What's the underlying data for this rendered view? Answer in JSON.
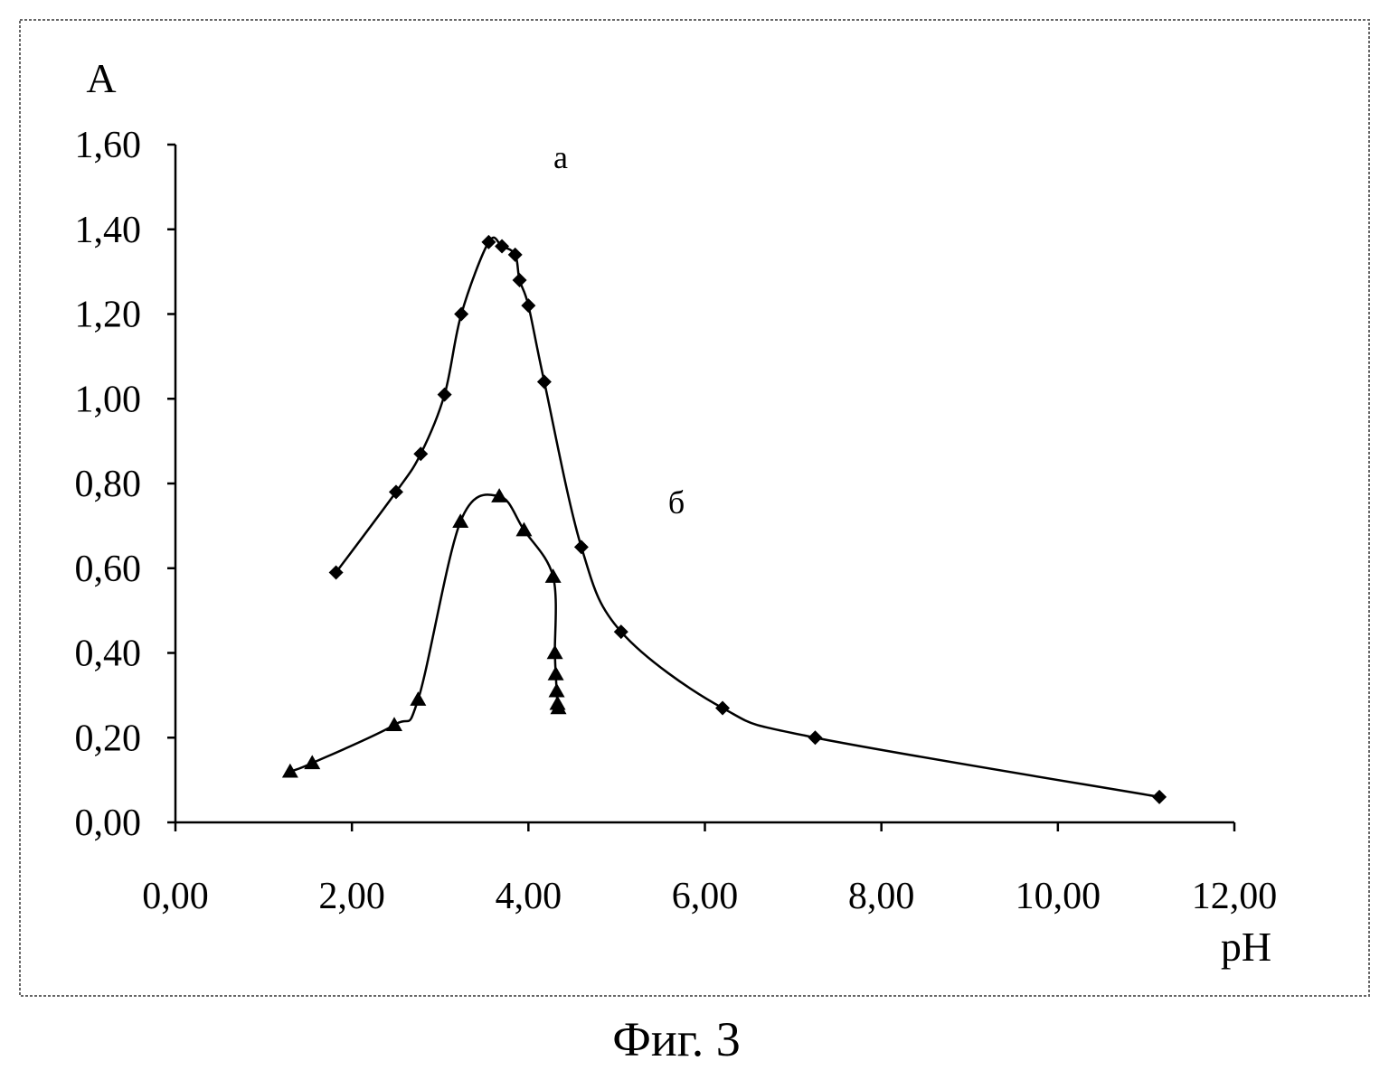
{
  "caption": "Фиг. 3",
  "chart_data": {
    "type": "scatter",
    "title": "",
    "xlabel": "pH",
    "ylabel": "A",
    "xlim": [
      0,
      12
    ],
    "ylim": [
      0,
      1.6
    ],
    "x_ticks": [
      "0,00",
      "2,00",
      "4,00",
      "6,00",
      "8,00",
      "10,00",
      "12,00"
    ],
    "y_ticks": [
      "0,00",
      "0,20",
      "0,40",
      "0,60",
      "0,80",
      "1,00",
      "1,20",
      "1,40",
      "1,60"
    ],
    "x_tick_values": [
      0,
      2,
      4,
      6,
      8,
      10,
      12
    ],
    "y_tick_values": [
      0,
      0.2,
      0.4,
      0.6,
      0.8,
      1.0,
      1.2,
      1.4,
      1.6
    ],
    "grid": false,
    "legend": "none",
    "series": [
      {
        "name": "а",
        "marker": "diamond",
        "line": "smooth",
        "color": "#000000",
        "points": [
          [
            1.82,
            0.59
          ],
          [
            2.5,
            0.78
          ],
          [
            2.78,
            0.87
          ],
          [
            3.05,
            1.01
          ],
          [
            3.24,
            1.2
          ],
          [
            3.55,
            1.37
          ],
          [
            3.7,
            1.36
          ],
          [
            3.85,
            1.34
          ],
          [
            3.9,
            1.28
          ],
          [
            4.0,
            1.22
          ],
          [
            4.18,
            1.04
          ],
          [
            4.6,
            0.65
          ],
          [
            5.05,
            0.45
          ],
          [
            6.2,
            0.27
          ],
          [
            7.25,
            0.2
          ],
          [
            11.15,
            0.06
          ]
        ]
      },
      {
        "name": "б",
        "marker": "triangle",
        "line": "smooth",
        "color": "#000000",
        "points": [
          [
            1.3,
            0.12
          ],
          [
            1.55,
            0.14
          ],
          [
            2.48,
            0.23
          ],
          [
            2.75,
            0.29
          ],
          [
            3.23,
            0.71
          ],
          [
            3.67,
            0.77
          ],
          [
            3.95,
            0.69
          ],
          [
            4.28,
            0.58
          ],
          [
            4.3,
            0.4
          ],
          [
            4.31,
            0.35
          ],
          [
            4.32,
            0.31
          ],
          [
            4.33,
            0.28
          ],
          [
            4.34,
            0.27
          ]
        ]
      }
    ]
  }
}
